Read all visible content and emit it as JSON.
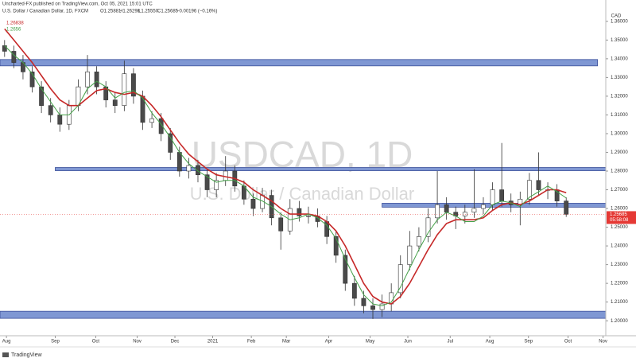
{
  "chart_data": {
    "type": "candlestick",
    "header": {
      "publisher": "Uncharted-FX published on TradingView.com, Oct 05, 2021 15:01 UTC",
      "symbol": "U.S. Dollar / Canadian Dollar, 1D, FXCM",
      "open": "O1.25881",
      "high": "H1.26298",
      "low": "L1.25550",
      "close": "C1.25685",
      "change": "−0.00196 (−0.16%)"
    },
    "watermark_symbol": "USDCAD, 1D",
    "watermark_name": "U.S. Dollar / Canadian Dollar",
    "currency": "CAD",
    "logo": "TradingView",
    "up_color": "#ffffff",
    "down_color": "#4a4a4a",
    "open": [
      1.347,
      1.344,
      1.338,
      1.333,
      1.325,
      1.315,
      1.31,
      1.305,
      1.315,
      1.325,
      1.333,
      1.325,
      1.318,
      1.315,
      1.332,
      1.32,
      1.306,
      1.308,
      1.3,
      1.29,
      1.28,
      1.283,
      1.278,
      1.27,
      1.275,
      1.28,
      1.272,
      1.265,
      1.26,
      1.267,
      1.255,
      1.248,
      1.26,
      1.256,
      1.256,
      1.253,
      1.245,
      1.235,
      1.22,
      1.212,
      1.208,
      1.206,
      1.209,
      1.215,
      1.23,
      1.24,
      1.245,
      1.255,
      1.262,
      1.258,
      1.256,
      1.258,
      1.26,
      1.262,
      1.27,
      1.264,
      1.262,
      1.265,
      1.275,
      1.27,
      1.27,
      1.264
    ],
    "high": [
      1.35,
      1.347,
      1.342,
      1.336,
      1.328,
      1.319,
      1.314,
      1.318,
      1.329,
      1.342,
      1.336,
      1.328,
      1.322,
      1.339,
      1.335,
      1.323,
      1.312,
      1.311,
      1.303,
      1.293,
      1.287,
      1.286,
      1.281,
      1.279,
      1.288,
      1.283,
      1.275,
      1.268,
      1.271,
      1.27,
      1.258,
      1.265,
      1.264,
      1.261,
      1.26,
      1.256,
      1.248,
      1.238,
      1.224,
      1.216,
      1.212,
      1.214,
      1.22,
      1.235,
      1.248,
      1.25,
      1.26,
      1.28,
      1.266,
      1.261,
      1.262,
      1.281,
      1.266,
      1.274,
      1.295,
      1.268,
      1.269,
      1.279,
      1.29,
      1.274,
      1.273,
      1.266
    ],
    "low": [
      1.341,
      1.335,
      1.329,
      1.322,
      1.311,
      1.306,
      1.301,
      1.302,
      1.312,
      1.321,
      1.321,
      1.314,
      1.311,
      1.312,
      1.316,
      1.302,
      1.303,
      1.296,
      1.286,
      1.277,
      1.276,
      1.274,
      1.266,
      1.266,
      1.272,
      1.269,
      1.262,
      1.256,
      1.258,
      1.251,
      1.238,
      1.246,
      1.253,
      1.252,
      1.25,
      1.241,
      1.231,
      1.216,
      1.208,
      1.204,
      1.201,
      1.202,
      1.205,
      1.212,
      1.227,
      1.237,
      1.242,
      1.252,
      1.254,
      1.249,
      1.252,
      1.255,
      1.257,
      1.259,
      1.261,
      1.258,
      1.251,
      1.262,
      1.267,
      1.265,
      1.261,
      1.2555
    ],
    "close": [
      1.344,
      1.338,
      1.333,
      1.325,
      1.315,
      1.31,
      1.305,
      1.315,
      1.325,
      1.333,
      1.325,
      1.318,
      1.315,
      1.332,
      1.32,
      1.306,
      1.308,
      1.3,
      1.29,
      1.28,
      1.283,
      1.278,
      1.27,
      1.275,
      1.28,
      1.272,
      1.265,
      1.26,
      1.267,
      1.255,
      1.248,
      1.26,
      1.256,
      1.256,
      1.253,
      1.245,
      1.235,
      1.22,
      1.212,
      1.208,
      1.206,
      1.209,
      1.215,
      1.23,
      1.24,
      1.245,
      1.255,
      1.262,
      1.258,
      1.256,
      1.258,
      1.26,
      1.262,
      1.27,
      1.264,
      1.262,
      1.265,
      1.275,
      1.27,
      1.27,
      1.264,
      1.2569
    ],
    "ma": [
      {
        "color": "#c62828",
        "last": 1.26838,
        "values": [
          1.356,
          1.35,
          1.344,
          1.338,
          1.331,
          1.324,
          1.318,
          1.315,
          1.315,
          1.319,
          1.323,
          1.324,
          1.322,
          1.321,
          1.322,
          1.32,
          1.315,
          1.309,
          1.302,
          1.295,
          1.289,
          1.285,
          1.281,
          1.278,
          1.277,
          1.276,
          1.274,
          1.27,
          1.267,
          1.264,
          1.26,
          1.257,
          1.257,
          1.257,
          1.256,
          1.253,
          1.248,
          1.24,
          1.23,
          1.22,
          1.213,
          1.21,
          1.209,
          1.213,
          1.22,
          1.229,
          1.238,
          1.246,
          1.252,
          1.254,
          1.254,
          1.254,
          1.255,
          1.259,
          1.262,
          1.263,
          1.262,
          1.264,
          1.267,
          1.27,
          1.27,
          1.2684
        ]
      },
      {
        "color": "#43a047",
        "last": 1.2656,
        "values": [
          1.347,
          1.342,
          1.338,
          1.332,
          1.324,
          1.317,
          1.31,
          1.31,
          1.315,
          1.324,
          1.328,
          1.325,
          1.319,
          1.322,
          1.323,
          1.319,
          1.311,
          1.305,
          1.298,
          1.29,
          1.284,
          1.28,
          1.277,
          1.274,
          1.275,
          1.275,
          1.272,
          1.266,
          1.264,
          1.261,
          1.257,
          1.254,
          1.255,
          1.257,
          1.255,
          1.251,
          1.244,
          1.233,
          1.223,
          1.214,
          1.209,
          1.208,
          1.21,
          1.218,
          1.228,
          1.238,
          1.247,
          1.254,
          1.258,
          1.256,
          1.253,
          1.253,
          1.256,
          1.262,
          1.264,
          1.263,
          1.261,
          1.266,
          1.269,
          1.272,
          1.269,
          1.2656
        ]
      }
    ],
    "zone_color": "#7f97d3",
    "zones": [
      {
        "low": 1.3362,
        "high": 1.3396,
        "start": -0.5,
        "end": 64.4
      },
      {
        "low": 1.2802,
        "high": 1.2819,
        "start": 5.5,
        "end": 65.3
      },
      {
        "low": 1.2607,
        "high": 1.2628,
        "start": 41.0,
        "end": 65.3
      },
      {
        "low": 1.2013,
        "high": 1.2051,
        "start": -0.5,
        "end": 65.3
      }
    ],
    "last_price": 1.25685,
    "countdown": "05:58:08",
    "ylim": [
      1.192,
      1.368
    ],
    "yticks": [
      {
        "value": 1.2,
        "label": "1.20000"
      },
      {
        "value": 1.21,
        "label": "1.21000"
      },
      {
        "value": 1.22,
        "label": "1.22000"
      },
      {
        "value": 1.23,
        "label": "1.23000"
      },
      {
        "value": 1.24,
        "label": "1.24000"
      },
      {
        "value": 1.25,
        "label": "1.25000"
      },
      {
        "value": 1.26,
        "label": "1.26000"
      },
      {
        "value": 1.27,
        "label": "1.27000"
      },
      {
        "value": 1.28,
        "label": "1.28000"
      },
      {
        "value": 1.29,
        "label": "1.29000"
      },
      {
        "value": 1.3,
        "label": "1.30000"
      },
      {
        "value": 1.31,
        "label": "1.31000"
      },
      {
        "value": 1.32,
        "label": "1.32000"
      },
      {
        "value": 1.33,
        "label": "1.33000"
      },
      {
        "value": 1.34,
        "label": "1.34000"
      },
      {
        "value": 1.35,
        "label": "1.35000"
      },
      {
        "value": 1.36,
        "label": "1.36000"
      }
    ],
    "xlim": [
      -0.5,
      65.3
    ],
    "xticks": [
      {
        "value": 0.2,
        "label": "Aug"
      },
      {
        "value": 5.5,
        "label": "Sep"
      },
      {
        "value": 9.9,
        "label": "Oct"
      },
      {
        "value": 14.4,
        "label": "Nov"
      },
      {
        "value": 18.5,
        "label": "Dec"
      },
      {
        "value": 22.6,
        "label": "2021"
      },
      {
        "value": 26.8,
        "label": "Feb"
      },
      {
        "value": 30.6,
        "label": "Mar"
      },
      {
        "value": 35.2,
        "label": "Apr"
      },
      {
        "value": 39.7,
        "label": "May"
      },
      {
        "value": 43.8,
        "label": "Jun"
      },
      {
        "value": 48.4,
        "label": "Jul"
      },
      {
        "value": 52.7,
        "label": "Aug"
      },
      {
        "value": 56.9,
        "label": "Sep"
      },
      {
        "value": 61.2,
        "label": "Oct"
      },
      {
        "value": 65.0,
        "label": "Nov"
      }
    ]
  }
}
